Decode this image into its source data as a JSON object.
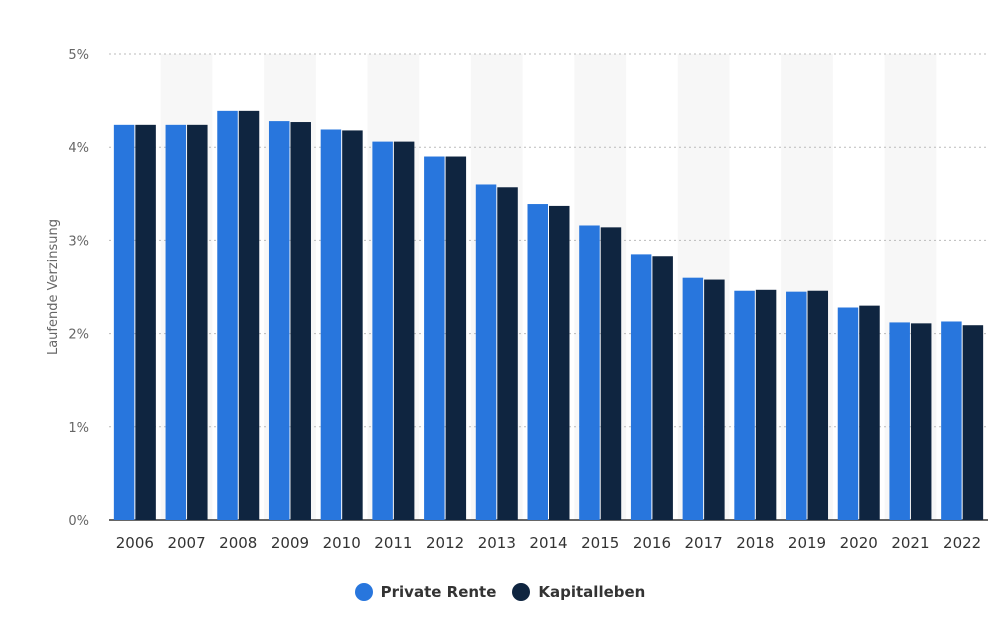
{
  "chart_data": {
    "type": "bar",
    "ylabel": "Laufende Verzinsung",
    "ylim": [
      0,
      5
    ],
    "yticks": [
      "0%",
      "1%",
      "2%",
      "3%",
      "4%",
      "5%"
    ],
    "grid": true,
    "legend_position": "bottom-center",
    "categories": [
      "2006",
      "2007",
      "2008",
      "2009",
      "2010",
      "2011",
      "2012",
      "2013",
      "2014",
      "2015",
      "2016",
      "2017",
      "2018",
      "2019",
      "2020",
      "2021",
      "2022"
    ],
    "series": [
      {
        "name": "Private Rente",
        "color": "#2876dd",
        "values": [
          4.24,
          4.24,
          4.39,
          4.28,
          4.19,
          4.06,
          3.9,
          3.6,
          3.39,
          3.16,
          2.85,
          2.6,
          2.46,
          2.45,
          2.28,
          2.12,
          2.13
        ]
      },
      {
        "name": "Kapitalleben",
        "color": "#0f2540",
        "values": [
          4.24,
          4.24,
          4.39,
          4.27,
          4.18,
          4.06,
          3.9,
          3.57,
          3.37,
          3.14,
          2.83,
          2.58,
          2.47,
          2.46,
          2.3,
          2.11,
          2.09
        ]
      }
    ]
  }
}
